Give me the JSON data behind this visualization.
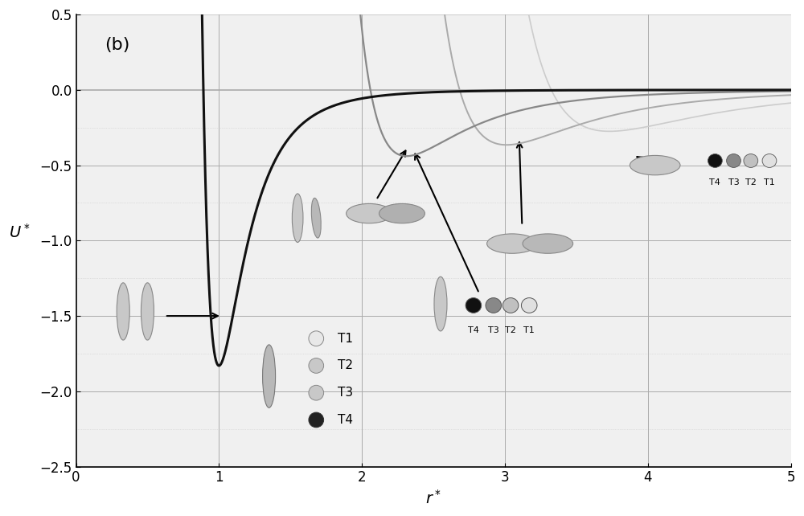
{
  "title_label": "(b)",
  "xlabel": "r*",
  "ylabel": "U*",
  "xlim": [
    0,
    5
  ],
  "ylim": [
    -2.5,
    0.5
  ],
  "xticks": [
    0,
    1,
    2,
    3,
    4,
    5
  ],
  "yticks": [
    0.5,
    0.0,
    -0.5,
    -1.0,
    -1.5,
    -2.0,
    -2.5
  ],
  "background_color": "#f0f0f0",
  "grid_major_color": "#aaaaaa",
  "grid_minor_color": "#cccccc",
  "curve_T4_color": "#111111",
  "curve_T3_color": "#888888",
  "curve_T2_color": "#aaaaaa",
  "curve_T1_color": "#cccccc",
  "curve_T4_lw": 2.2,
  "curve_T3_lw": 1.6,
  "curve_T2_lw": 1.4,
  "curve_T1_lw": 1.2,
  "ellipse_face_light": "#d0d0d0",
  "ellipse_face_medium": "#b0b0b0",
  "ellipse_face_dark": "#555555",
  "ellipse_face_black": "#111111",
  "ellipse_edge": "#666666"
}
